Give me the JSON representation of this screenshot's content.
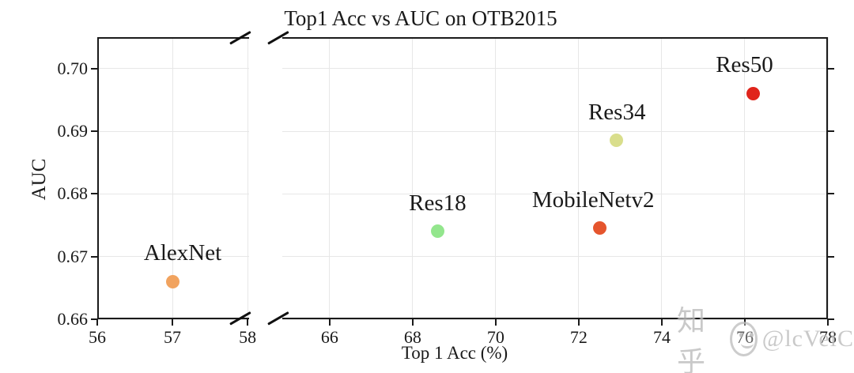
{
  "title": "Top1 Acc vs AUC on OTB2015",
  "watermark": {
    "brand": "知乎",
    "handle": "@lcVeiC"
  },
  "chart_data": {
    "type": "scatter",
    "title": "Top1 Acc vs AUC on OTB2015",
    "xlabel": "Top 1 Acc (%)",
    "ylabel": "AUC",
    "grid": true,
    "broken_x_axis": true,
    "ylim": [
      0.66,
      0.705
    ],
    "yticks": [
      0.66,
      0.67,
      0.68,
      0.69,
      0.7
    ],
    "panels": [
      {
        "xlim": [
          56,
          58.02
        ],
        "xticks": [
          56,
          57,
          58
        ]
      },
      {
        "xlim": [
          64.86,
          78
        ],
        "xticks": [
          66,
          68,
          70,
          72,
          74,
          76,
          78
        ]
      }
    ],
    "series": [
      {
        "name": "AlexNet",
        "panel": 0,
        "x": 57.0,
        "y": 0.666,
        "color": "#F1A35F"
      },
      {
        "name": "Res18",
        "panel": 1,
        "x": 68.6,
        "y": 0.674,
        "color": "#93E68D"
      },
      {
        "name": "MobileNetv2",
        "panel": 1,
        "x": 72.5,
        "y": 0.6745,
        "color": "#E5552D"
      },
      {
        "name": "Res34",
        "panel": 1,
        "x": 72.9,
        "y": 0.6885,
        "color": "#D9DE8C"
      },
      {
        "name": "Res50",
        "panel": 1,
        "x": 76.2,
        "y": 0.696,
        "color": "#E0241B"
      }
    ]
  }
}
